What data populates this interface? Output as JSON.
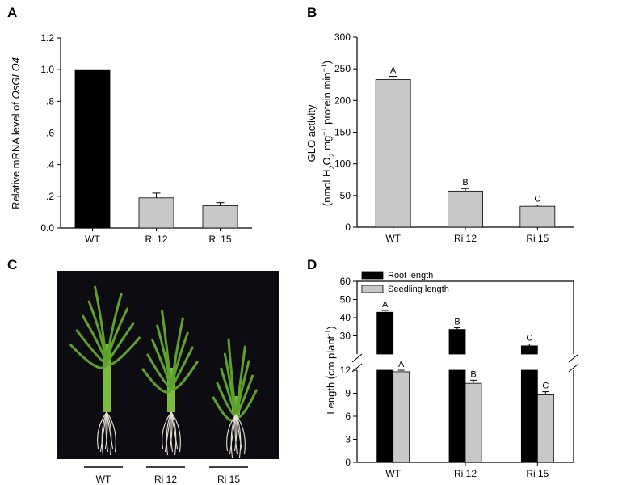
{
  "panel_letters": {
    "a": "A",
    "b": "B",
    "c": "C",
    "d": "D"
  },
  "colors": {
    "black_bar": "#000000",
    "gray_bar": "#c8c8c8",
    "photo_bg": "#0d0c12",
    "leaf": "#5fa12c"
  },
  "chart_data": [
    {
      "type": "bar",
      "panel": "A",
      "categories": [
        "WT",
        "Ri 12",
        "Ri 15"
      ],
      "values": [
        1.0,
        0.19,
        0.14
      ],
      "errors": [
        0.0,
        0.03,
        0.02
      ],
      "bar_colors": [
        "#000000",
        "#c8c8c8",
        "#c8c8c8"
      ],
      "ylabel_prefix": "Relative mRNA level of ",
      "ylabel_gene": "OsGLO4",
      "ylim": [
        0,
        1.2
      ],
      "yticks": [
        "0.0",
        ".2",
        ".4",
        ".6",
        ".8",
        "1.0",
        "1.2"
      ],
      "ytick_values": [
        0,
        0.2,
        0.4,
        0.6,
        0.8,
        1.0,
        1.2
      ]
    },
    {
      "type": "bar",
      "panel": "B",
      "categories": [
        "WT",
        "Ri 12",
        "Ri 15"
      ],
      "values": [
        233,
        57,
        33
      ],
      "errors": [
        5,
        4,
        2
      ],
      "letters": [
        "A",
        "B",
        "C"
      ],
      "ylabel_line1": "GLO activity",
      "ylabel_line2": "(nmol H2O2 mg−1 protein min−1)",
      "ylim": [
        0,
        300
      ],
      "yticks": [
        "0",
        "50",
        "100",
        "150",
        "200",
        "250",
        "300"
      ],
      "ytick_values": [
        0,
        50,
        100,
        150,
        200,
        250,
        300
      ]
    },
    {
      "type": "bar",
      "panel": "D",
      "categories": [
        "WT",
        "Ri 12",
        "Ri 15"
      ],
      "broken_axis": true,
      "series": [
        {
          "name": "Root length",
          "color": "#000000",
          "values": [
            43,
            33.5,
            24.5
          ],
          "errors": [
            1.0,
            1.0,
            1.0
          ],
          "letters": [
            "A",
            "B",
            "C"
          ]
        },
        {
          "name": "Seedling length",
          "color": "#c8c8c8",
          "values": [
            11.8,
            10.3,
            8.8
          ],
          "errors": [
            0.2,
            0.4,
            0.4
          ],
          "letters": [
            "A",
            "B",
            "C"
          ]
        }
      ],
      "ylabel": "Length (cm plant−1)",
      "ylim_lower": [
        0,
        12
      ],
      "ylim_upper": [
        20,
        60
      ],
      "yticks_lower": [
        "0",
        "3",
        "6",
        "9",
        "12"
      ],
      "ytick_values_lower": [
        0,
        3,
        6,
        9,
        12
      ],
      "yticks_upper": [
        "30",
        "40",
        "50",
        "60"
      ],
      "ytick_values_upper": [
        30,
        40,
        50,
        60
      ]
    }
  ],
  "photo_panel": {
    "letter": "C",
    "labels": [
      "WT",
      "Ri 12",
      "Ri 15"
    ]
  }
}
